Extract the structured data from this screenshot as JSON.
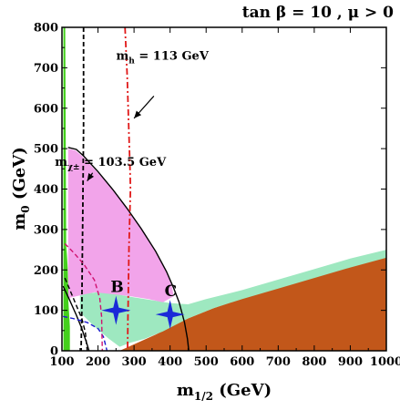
{
  "chart_data": {
    "type": "area",
    "title": "tan β = 10 ,  μ > 0",
    "xlabel": {
      "main": "m",
      "sub": "1/2",
      "unit": " (GeV)"
    },
    "ylabel": {
      "main": "m",
      "sub": "0",
      "unit": " (GeV)"
    },
    "xlim": [
      100,
      1000
    ],
    "ylim": [
      0,
      800
    ],
    "xticks": [
      100,
      200,
      300,
      400,
      500,
      600,
      700,
      800,
      900,
      1000
    ],
    "yticks": [
      0,
      100,
      200,
      300,
      400,
      500,
      600,
      700,
      800
    ],
    "grid": false,
    "colors": {
      "stau_lsp": "#c2571a",
      "relic_density": "#9ee8c0",
      "g2_favoured": "#f2a4ea",
      "bsgamma_excluded": "#44d01c",
      "higgs_line": "#e01818",
      "chargino_line": "#000000",
      "blue_dashed": "#1a1ad0",
      "magenta_dashed": "#d0106e",
      "benchmark": "#1a2ad8"
    },
    "regions": {
      "stau_lsp": [
        [
          260,
          0
        ],
        [
          360,
          40
        ],
        [
          450,
          80
        ],
        [
          520,
          105
        ],
        [
          600,
          130
        ],
        [
          700,
          158
        ],
        [
          800,
          185
        ],
        [
          900,
          212
        ],
        [
          1000,
          236
        ],
        [
          1000,
          0
        ]
      ],
      "relic_density": [
        [
          150,
          140
        ],
        [
          200,
          145
        ],
        [
          250,
          140
        ],
        [
          300,
          132
        ],
        [
          350,
          125
        ],
        [
          400,
          118
        ],
        [
          450,
          115
        ],
        [
          500,
          128
        ],
        [
          600,
          150
        ],
        [
          700,
          176
        ],
        [
          800,
          202
        ],
        [
          900,
          228
        ],
        [
          1000,
          250
        ],
        [
          1000,
          230
        ],
        [
          900,
          206
        ],
        [
          800,
          180
        ],
        [
          700,
          154
        ],
        [
          600,
          128
        ],
        [
          520,
          105
        ],
        [
          450,
          80
        ],
        [
          380,
          48
        ],
        [
          330,
          30
        ],
        [
          290,
          20
        ],
        [
          260,
          10
        ],
        [
          230,
          30
        ],
        [
          190,
          60
        ],
        [
          150,
          95
        ]
      ],
      "g2_favoured": [
        [
          117,
          500
        ],
        [
          138,
          495
        ],
        [
          160,
          478
        ],
        [
          200,
          440
        ],
        [
          240,
          400
        ],
        [
          280,
          353
        ],
        [
          320,
          305
        ],
        [
          360,
          248
        ],
        [
          390,
          196
        ],
        [
          405,
          160
        ],
        [
          410,
          135
        ],
        [
          380,
          120
        ],
        [
          340,
          128
        ],
        [
          290,
          135
        ],
        [
          240,
          140
        ],
        [
          190,
          145
        ],
        [
          140,
          135
        ],
        [
          117,
          130
        ]
      ],
      "bsgamma_excluded": [
        [
          104,
          800
        ],
        [
          109,
          800
        ],
        [
          110,
          600
        ],
        [
          111,
          400
        ],
        [
          112,
          260
        ],
        [
          114,
          235
        ],
        [
          116,
          205
        ],
        [
          118,
          120
        ],
        [
          122,
          60
        ],
        [
          122,
          0
        ],
        [
          104,
          0
        ]
      ]
    },
    "lines": [
      {
        "name": "m_chargino",
        "style": "solid",
        "points": [
          [
            117,
            503
          ],
          [
            140,
            498
          ],
          [
            160,
            482
          ],
          [
            200,
            443
          ],
          [
            240,
            400
          ],
          [
            280,
            353
          ],
          [
            320,
            302
          ],
          [
            360,
            246
          ],
          [
            390,
            196
          ],
          [
            410,
            155
          ],
          [
            425,
            120
          ],
          [
            440,
            70
          ],
          [
            448,
            30
          ],
          [
            452,
            0
          ]
        ]
      },
      {
        "name": "m_h",
        "style": "dashdot",
        "points": [
          [
            275,
            800
          ],
          [
            278,
            740
          ],
          [
            281,
            680
          ],
          [
            283,
            620
          ],
          [
            285,
            560
          ],
          [
            287,
            500
          ],
          [
            289,
            440
          ],
          [
            290,
            400
          ],
          [
            288,
            330
          ],
          [
            286,
            260
          ],
          [
            285,
            200
          ],
          [
            284,
            140
          ],
          [
            283,
            80
          ],
          [
            282,
            0
          ]
        ]
      },
      {
        "name": "black_dashed_vertical",
        "style": "dashed",
        "points": [
          [
            160,
            800
          ],
          [
            160,
            550
          ],
          [
            158,
            350
          ],
          [
            156,
            200
          ],
          [
            155,
            100
          ],
          [
            153,
            0
          ]
        ]
      },
      {
        "name": "black_dashed_curve",
        "style": "dashed",
        "points": [
          [
            108,
            180
          ],
          [
            120,
            155
          ],
          [
            140,
            112
          ],
          [
            155,
            80
          ],
          [
            165,
            45
          ],
          [
            170,
            0
          ]
        ]
      },
      {
        "name": "black_solid_curve",
        "style": "solid",
        "points": [
          [
            103,
            160
          ],
          [
            120,
            128
          ],
          [
            140,
            88
          ],
          [
            155,
            55
          ],
          [
            170,
            15
          ],
          [
            175,
            0
          ]
        ]
      },
      {
        "name": "blue_dashed",
        "style": "dashed",
        "points": [
          [
            103,
            85
          ],
          [
            130,
            80
          ],
          [
            170,
            70
          ],
          [
            200,
            55
          ],
          [
            215,
            35
          ],
          [
            225,
            0
          ]
        ]
      },
      {
        "name": "magenta_dashed",
        "style": "dashed",
        "points": [
          [
            108,
            265
          ],
          [
            130,
            245
          ],
          [
            160,
            215
          ],
          [
            190,
            175
          ],
          [
            205,
            130
          ],
          [
            210,
            85
          ],
          [
            212,
            0
          ]
        ]
      }
    ],
    "benchmarks": [
      {
        "label": "B",
        "x": 250,
        "y": 100
      },
      {
        "label": "C",
        "x": 400,
        "y": 90
      }
    ],
    "annotations": [
      {
        "id": "mh",
        "main": "m",
        "sub": "h",
        "rest": "  = 113 GeV",
        "x": 382,
        "y": 720,
        "arrow_from": [
          355,
          630
        ],
        "arrow_to": [
          300,
          575
        ]
      },
      {
        "id": "mchi",
        "main": "m",
        "sub": "χ±",
        "rest": " = 103.5 GeV",
        "x": 212,
        "y": 458,
        "arrow_from": [
          185,
          440
        ],
        "arrow_to": [
          170,
          420
        ]
      }
    ]
  }
}
